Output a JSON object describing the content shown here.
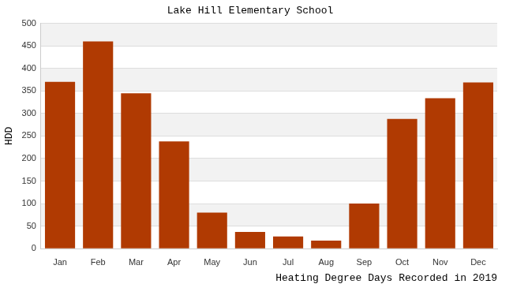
{
  "chart_data": {
    "type": "bar",
    "title": "Lake Hill Elementary School",
    "x_label": "Heating Degree Days Recorded in 2019",
    "y_label": "HDD",
    "categories": [
      "Jan",
      "Feb",
      "Mar",
      "Apr",
      "May",
      "Jun",
      "Jul",
      "Aug",
      "Sep",
      "Oct",
      "Nov",
      "Dec"
    ],
    "values": [
      370,
      460,
      345,
      238,
      80,
      37,
      27,
      18,
      100,
      288,
      334,
      369
    ],
    "color": "#b03a02",
    "ylim": [
      0,
      500
    ],
    "yticks": [
      0,
      50,
      100,
      150,
      200,
      250,
      300,
      350,
      400,
      450,
      500
    ],
    "grid": true
  }
}
